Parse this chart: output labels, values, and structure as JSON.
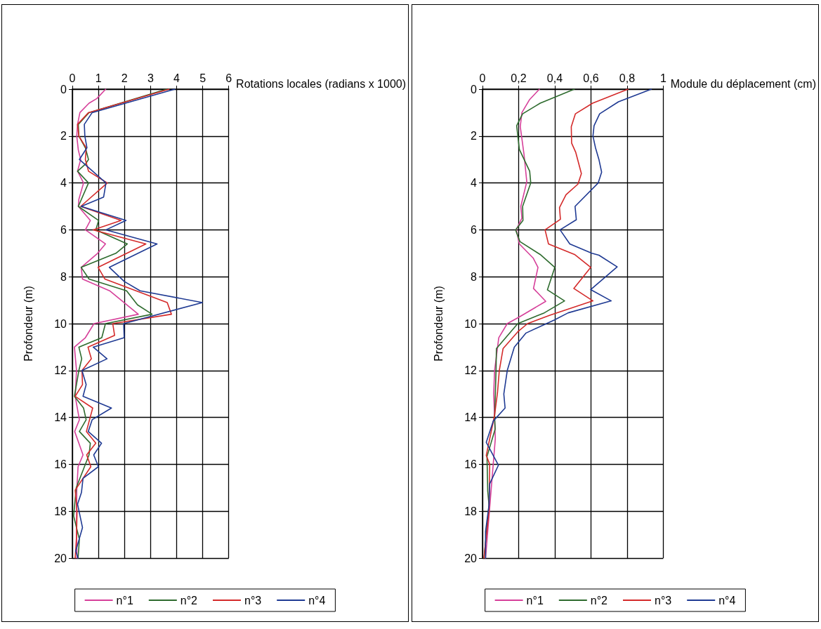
{
  "chart_data": [
    {
      "type": "line",
      "xlabel": "Rotations locales (radians x 1000)",
      "ylabel": "Profondeur (m)",
      "xlim": [
        0,
        6
      ],
      "xticks": [
        0,
        1,
        2,
        3,
        4,
        5,
        6
      ],
      "ylim": [
        20,
        0
      ],
      "yticks": [
        0,
        2,
        4,
        6,
        8,
        10,
        12,
        14,
        16,
        18,
        20
      ],
      "grid": true,
      "legend": "bottom",
      "marker": "none",
      "line_style": "solid",
      "series": [
        {
          "name": "n°1",
          "color": "#d6409a",
          "x": [
            1.28,
            0.94,
            0.64,
            0.29,
            0.2,
            0.17,
            0.23,
            0.32,
            0.2,
            0.43,
            0.25,
            0.23,
            0.69,
            0.5,
            1.27,
            0.97,
            0.34,
            0.39,
            1.43,
            2.53,
            0.83,
            0.5,
            0.08,
            0.16,
            0.11,
            0.27,
            0.09,
            0.41,
            0.22,
            0.17,
            0.16,
            0.18
          ],
          "values": [
            0,
            0.4,
            0.6,
            1,
            1.5,
            2,
            2.6,
            3,
            3.5,
            4,
            4.7,
            5,
            5.6,
            6,
            6.6,
            7,
            7.6,
            8.1,
            8.6,
            9.6,
            10,
            10.6,
            11,
            12,
            13.1,
            14.1,
            14.6,
            15.6,
            16.1,
            17.1,
            19.1,
            20
          ]
        },
        {
          "name": "n°2",
          "color": "#2e6b2e",
          "x": [
            3.62,
            0.64,
            0.23,
            0.25,
            0.5,
            0.62,
            0.5,
            0.2,
            0.62,
            0.23,
            1.01,
            0.9,
            2.11,
            1.67,
            0.34,
            0.64,
            2.08,
            2.5,
            3.06,
            1.27,
            1.13,
            0.25,
            0.36,
            0.25,
            0.08,
            0.43,
            0.53,
            0.27,
            0.69,
            0.64,
            0.15,
            0.05,
            0.27,
            0.22
          ],
          "values": [
            0,
            1,
            1.5,
            2,
            2.5,
            3,
            3.2,
            3.5,
            4,
            5,
            5.6,
            6,
            6.6,
            7,
            7.6,
            8.1,
            8.6,
            9.2,
            9.6,
            10,
            10.6,
            11,
            11.5,
            12,
            13.1,
            13.6,
            14.1,
            14.6,
            15.1,
            15.6,
            17,
            18.2,
            19.2,
            20
          ]
        },
        {
          "name": "n°3",
          "color": "#d42a2a",
          "x": [
            3.71,
            0.62,
            0.2,
            0.25,
            0.53,
            0.5,
            0.62,
            1.34,
            0.32,
            1.87,
            0.8,
            2.82,
            0.99,
            1.25,
            3.64,
            3.8,
            1.55,
            1.62,
            0.6,
            0.73,
            0.37,
            0.39,
            0.11,
            0.78,
            0.54,
            0.9,
            0.55,
            0.71,
            0.11,
            0.18,
            0.16,
            0.11
          ],
          "values": [
            0,
            1,
            1.5,
            2,
            2.5,
            3,
            3.5,
            4,
            5,
            5.6,
            6,
            6.6,
            7.6,
            8.1,
            9.1,
            9.6,
            10,
            10.5,
            11,
            11.5,
            12,
            12.6,
            13.1,
            13.6,
            14.6,
            15.1,
            15.6,
            16.1,
            17.1,
            18,
            19.1,
            20
          ]
        },
        {
          "name": "n°4",
          "color": "#1f3a93",
          "x": [
            3.93,
            0.76,
            0.46,
            0.48,
            0.56,
            0.27,
            1.29,
            1.2,
            0.34,
            2.06,
            1.29,
            3.25,
            1.42,
            1.99,
            2.6,
            4.99,
            1.97,
            1.99,
            0.8,
            1.33,
            0.37,
            0.53,
            0.41,
            1.5,
            0.76,
            0.61,
            1.12,
            0.82,
            1.0,
            0.41,
            0.35,
            0.2,
            0.39,
            0.13,
            0.22
          ],
          "values": [
            0,
            1,
            1.5,
            2,
            2.5,
            3,
            4,
            4.6,
            5,
            5.6,
            6,
            6.6,
            7.6,
            8.2,
            8.6,
            9.1,
            10,
            10.6,
            11,
            11.5,
            12,
            12.6,
            13.1,
            13.6,
            14.1,
            14.6,
            15.1,
            15.6,
            16.1,
            16.6,
            17.2,
            17.7,
            18.7,
            19.7,
            20
          ]
        }
      ]
    },
    {
      "type": "line",
      "xlabel": "Module du déplacement (cm)",
      "ylabel": "Profondeur (m)",
      "xlim": [
        0,
        1
      ],
      "xticks": [
        0,
        {
          "value": 0.2,
          "label": "0,2"
        },
        {
          "value": 0.4,
          "label": "0,4"
        },
        {
          "value": 0.6,
          "label": "0,6"
        },
        {
          "value": 0.8,
          "label": "0,8"
        },
        1
      ],
      "ylim": [
        20,
        0
      ],
      "yticks": [
        0,
        2,
        4,
        6,
        8,
        10,
        12,
        14,
        16,
        18,
        20
      ],
      "grid": true,
      "legend": "bottom",
      "marker": "none",
      "line_style": "solid",
      "series": [
        {
          "name": "n°1",
          "color": "#d6409a",
          "x": [
            0.315,
            0.261,
            0.218,
            0.209,
            0.23,
            0.245,
            0.212,
            0.218,
            0.187,
            0.204,
            0.28,
            0.307,
            0.282,
            0.35,
            0.207,
            0.137,
            0.09,
            0.067,
            0.062,
            0.071,
            0.017
          ],
          "values": [
            0,
            0.44,
            1,
            1.6,
            2.8,
            3.95,
            5,
            5.5,
            6,
            6.6,
            7.2,
            7.6,
            8.5,
            9.05,
            9.7,
            10,
            10.6,
            12,
            13,
            14.9,
            20
          ]
        },
        {
          "name": "n°2",
          "color": "#2e6b2e",
          "x": [
            0.508,
            0.319,
            0.222,
            0.189,
            0.204,
            0.261,
            0.267,
            0.222,
            0.224,
            0.183,
            0.207,
            0.319,
            0.4,
            0.359,
            0.454,
            0.342,
            0.195,
            0.077,
            0.075,
            0.067,
            0.07,
            0.025,
            0.029,
            0.036,
            0.009
          ],
          "values": [
            0,
            0.6,
            1.05,
            1.56,
            2.57,
            3.5,
            4,
            5,
            5.6,
            6,
            6.5,
            7.05,
            7.6,
            8.56,
            9.03,
            9.54,
            10,
            11.06,
            12,
            14,
            14.5,
            15.67,
            17.14,
            17.74,
            20
          ]
        },
        {
          "name": "n°3",
          "color": "#d42a2a",
          "x": [
            0.805,
            0.609,
            0.514,
            0.491,
            0.493,
            0.516,
            0.547,
            0.528,
            0.462,
            0.426,
            0.431,
            0.346,
            0.365,
            0.509,
            0.599,
            0.505,
            0.611,
            0.373,
            0.249,
            0.195,
            0.114,
            0.093,
            0.083,
            0.067,
            0.021,
            0.04,
            0.036,
            0.008
          ],
          "values": [
            0,
            0.6,
            1.05,
            1.6,
            2.3,
            2.7,
            3.6,
            4.05,
            4.5,
            5.05,
            5.55,
            6,
            6.6,
            7.05,
            7.6,
            8.5,
            9.03,
            9.64,
            10,
            10.35,
            11.06,
            12,
            12.94,
            13.9,
            15.62,
            16,
            18,
            20
          ]
        },
        {
          "name": "n°4",
          "color": "#1f3a93",
          "x": [
            0.934,
            0.752,
            0.648,
            0.617,
            0.611,
            0.625,
            0.644,
            0.659,
            0.64,
            0.512,
            0.519,
            0.429,
            0.483,
            0.605,
            0.644,
            0.745,
            0.598,
            0.712,
            0.474,
            0.396,
            0.241,
            0.176,
            0.137,
            0.118,
            0.125,
            0.06,
            0.021,
            0.088,
            0.04,
            0.036,
            0.017,
            0.017
          ],
          "values": [
            0,
            0.54,
            1.05,
            1.56,
            2,
            2.5,
            3,
            3.54,
            4,
            5,
            5.57,
            6,
            6.6,
            7,
            7.08,
            7.58,
            8.55,
            9.03,
            9.54,
            9.85,
            10.4,
            11,
            12,
            13,
            13.6,
            14.15,
            15.06,
            16.04,
            16.83,
            17.74,
            18.86,
            20
          ]
        }
      ]
    }
  ]
}
